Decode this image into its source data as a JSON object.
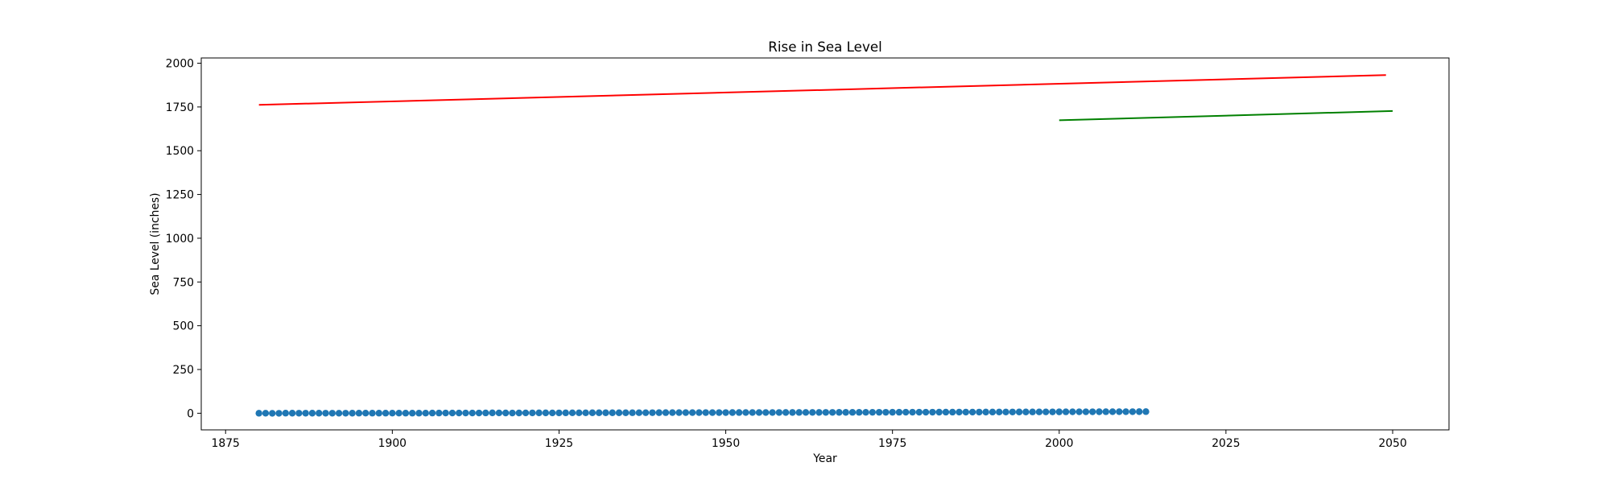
{
  "chart_data": {
    "type": "scatter",
    "title": "Rise in Sea Level",
    "xlabel": "Year",
    "ylabel": "Sea Level (inches)",
    "xlim": [
      1871.35,
      2058.45
    ],
    "ylim": [
      -95,
      2030
    ],
    "xticks": [
      1875,
      1900,
      1925,
      1950,
      1975,
      2000,
      2025,
      2050
    ],
    "yticks": [
      0,
      250,
      500,
      750,
      1000,
      1250,
      1500,
      1750,
      2000
    ],
    "grid": false,
    "scatter": {
      "color": "#1f77b4",
      "x": [
        1880,
        1881,
        1882,
        1883,
        1884,
        1885,
        1886,
        1887,
        1888,
        1889,
        1890,
        1891,
        1892,
        1893,
        1894,
        1895,
        1896,
        1897,
        1898,
        1899,
        1900,
        1901,
        1902,
        1903,
        1904,
        1905,
        1906,
        1907,
        1908,
        1909,
        1910,
        1911,
        1912,
        1913,
        1914,
        1915,
        1916,
        1917,
        1918,
        1919,
        1920,
        1921,
        1922,
        1923,
        1924,
        1925,
        1926,
        1927,
        1928,
        1929,
        1930,
        1931,
        1932,
        1933,
        1934,
        1935,
        1936,
        1937,
        1938,
        1939,
        1940,
        1941,
        1942,
        1943,
        1944,
        1945,
        1946,
        1947,
        1948,
        1949,
        1950,
        1951,
        1952,
        1953,
        1954,
        1955,
        1956,
        1957,
        1958,
        1959,
        1960,
        1961,
        1962,
        1963,
        1964,
        1965,
        1966,
        1967,
        1968,
        1969,
        1970,
        1971,
        1972,
        1973,
        1974,
        1975,
        1976,
        1977,
        1978,
        1979,
        1980,
        1981,
        1982,
        1983,
        1984,
        1985,
        1986,
        1987,
        1988,
        1989,
        1990,
        1991,
        1992,
        1993,
        1994,
        1995,
        1996,
        1997,
        1998,
        1999,
        2000,
        2001,
        2002,
        2003,
        2004,
        2005,
        2006,
        2007,
        2008,
        2009,
        2010,
        2011,
        2012,
        2013
      ],
      "y": [
        0,
        0.2,
        -0.4,
        -0.2,
        0.6,
        0.4,
        0.3,
        0.3,
        0.4,
        0.5,
        0.3,
        0.3,
        0.2,
        0.3,
        0.4,
        0.6,
        0.7,
        0.6,
        0.6,
        0.6,
        0.7,
        0.7,
        0.6,
        0.6,
        0.6,
        0.7,
        1.1,
        1.1,
        1.2,
        1.3,
        1.2,
        1.3,
        1.2,
        1.5,
        1.7,
        2.2,
        1.8,
        1.6,
        1.4,
        1.6,
        2.0,
        2.1,
        2.2,
        2.2,
        1.9,
        2.1,
        2.3,
        2.4,
        2.5,
        2.4,
        2.7,
        2.7,
        2.8,
        2.8,
        2.7,
        2.8,
        2.9,
        3.0,
        3.1,
        3.2,
        3.3,
        3.4,
        3.5,
        3.6,
        3.6,
        3.6,
        3.6,
        3.8,
        3.7,
        3.8,
        3.8,
        3.9,
        4.0,
        4.1,
        4.1,
        4.1,
        4.1,
        4.3,
        4.4,
        4.5,
        4.5,
        4.6,
        4.7,
        4.8,
        4.8,
        4.9,
        4.9,
        5.0,
        5.1,
        5.2,
        5.2,
        5.3,
        5.4,
        5.5,
        5.5,
        5.6,
        5.7,
        5.8,
        5.8,
        5.9,
        6.0,
        6.1,
        6.2,
        6.3,
        6.3,
        6.4,
        6.5,
        6.6,
        6.7,
        6.8,
        6.9,
        7.0,
        7.1,
        7.2,
        7.3,
        7.4,
        7.5,
        7.6,
        7.7,
        7.8,
        7.9,
        8.0,
        8.1,
        8.2,
        8.3,
        8.4,
        8.5,
        8.6,
        8.7,
        8.8,
        8.9,
        9.0,
        9.1,
        9.2
      ]
    },
    "lines": [
      {
        "name": "",
        "color": "#ff0000",
        "x": [
          1880,
          2049
        ],
        "y": [
          1762,
          1932
        ]
      },
      {
        "name": "",
        "color": "#008000",
        "x": [
          2000,
          2050
        ],
        "y": [
          1674,
          1727
        ]
      }
    ]
  }
}
